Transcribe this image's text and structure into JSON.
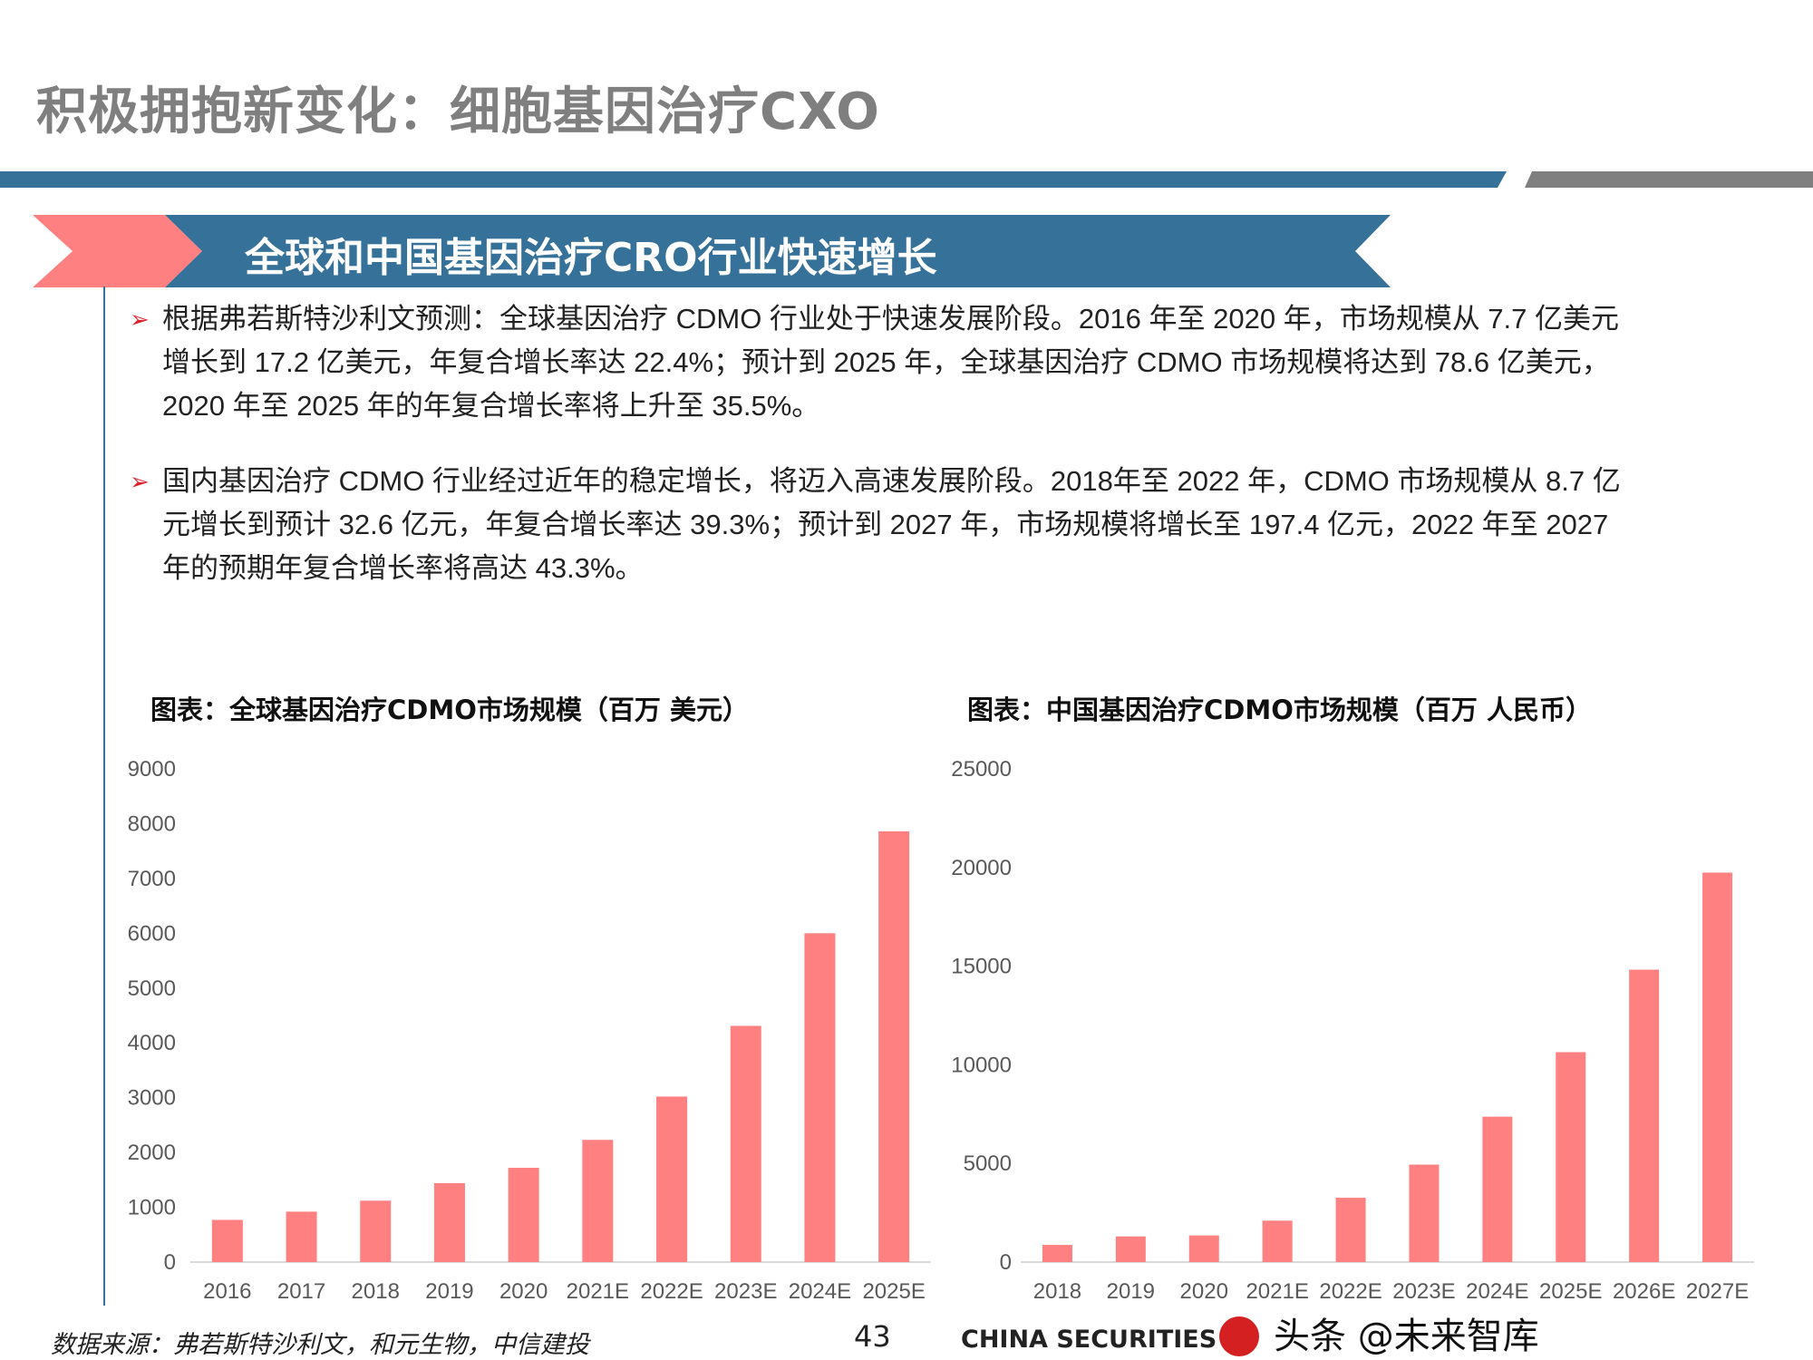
{
  "header": {
    "title": "积极拥抱新变化：细胞基因治疗CXO",
    "accent_blue": "#357199",
    "accent_gray": "#7f7f7f"
  },
  "banner": {
    "title": "全球和中国基因治疗CRO行业快速增长",
    "chevron_color": "#ff8080"
  },
  "bullets": [
    {
      "icon": "arrow-right-icon",
      "lines": [
        "根据弗若斯特沙利文预测：全球基因治疗 CDMO 行业处于快速发展阶段。2016 年至 2020 年，市场规模从 7.7 亿美元",
        "增长到 17.2 亿美元，年复合增长率达 22.4%；预计到 2025 年，全球基因治疗 CDMO 市场规模将达到 78.6 亿美元，",
        "2020 年至 2025 年的年复合增长率将上升至 35.5%。"
      ]
    },
    {
      "icon": "arrow-right-icon",
      "lines": [
        "国内基因治疗 CDMO 行业经过近年的稳定增长，将迈入高速发展阶段。2018年至 2022 年，CDMO 市场规模从 8.7 亿",
        "元增长到预计 32.6 亿元，年复合增长率达 39.3%；预计到 2027 年，市场规模将增长至 197.4 亿元，2022 年至 2027",
        "年的预期年复合增长率将高达 43.3%。"
      ]
    }
  ],
  "chart_data": [
    {
      "type": "bar",
      "title": "图表：全球基因治疗CDMO市场规模（百万 美元）",
      "categories": [
        "2016",
        "2017",
        "2018",
        "2019",
        "2020",
        "2021E",
        "2022E",
        "2023E",
        "2024E",
        "2025E"
      ],
      "values": [
        770,
        920,
        1120,
        1440,
        1720,
        2230,
        3020,
        4310,
        6000,
        7860
      ],
      "yticks": [
        "0",
        "1000",
        "2000",
        "3000",
        "4000",
        "5000",
        "6000",
        "7000",
        "8000",
        "9000"
      ],
      "ylim": [
        0,
        9000
      ],
      "grid": false,
      "bar_color": "#ff8080"
    },
    {
      "type": "bar",
      "title": "图表：中国基因治疗CDMO市场规模（百万 人民币）",
      "categories": [
        "2018",
        "2019",
        "2020",
        "2021E",
        "2022E",
        "2023E",
        "2024E",
        "2025E",
        "2026E",
        "2027E"
      ],
      "values": [
        870,
        1300,
        1350,
        2100,
        3260,
        4940,
        7370,
        10640,
        14820,
        19740
      ],
      "yticks": [
        "0",
        "5000",
        "10000",
        "15000",
        "20000",
        "25000"
      ],
      "ylim": [
        0,
        25000
      ],
      "grid": false,
      "bar_color": "#ff8080"
    }
  ],
  "footer": {
    "source": "数据来源：弗若斯特沙利文，和元生物，中信建投",
    "page_number": "43",
    "watermark": "头条 @未来智库",
    "watermark_sub": "CHINA SECURITIES"
  }
}
